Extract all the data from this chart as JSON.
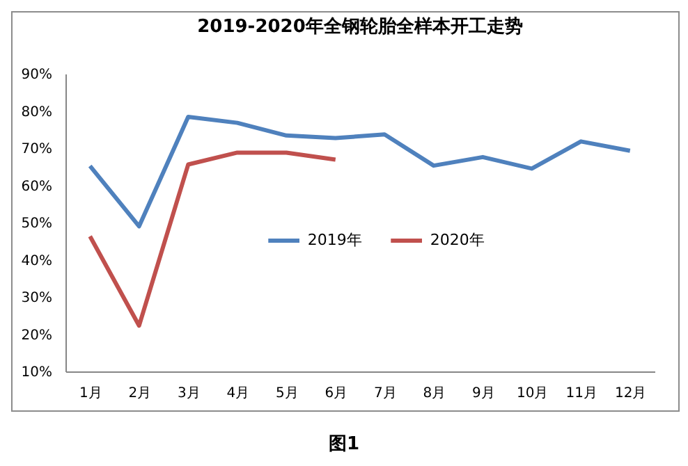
{
  "chart_data": {
    "type": "line",
    "title": "2019-2020年全钢轮胎全样本开工走势",
    "categories": [
      "1月",
      "2月",
      "3月",
      "4月",
      "5月",
      "6月",
      "7月",
      "8月",
      "9月",
      "10月",
      "11月",
      "12月"
    ],
    "series": [
      {
        "name": "2019年",
        "color": "#4f81bd",
        "values": [
          65.2,
          49,
          78.4,
          76.8,
          73.4,
          72.7,
          73.7,
          65.3,
          67.6,
          64.5,
          71.8,
          69.3
        ]
      },
      {
        "name": "2020年",
        "color": "#c0504d",
        "values": [
          46.3,
          22.3,
          65.6,
          68.8,
          68.8,
          66.9,
          null,
          null,
          null,
          null,
          null,
          null
        ]
      }
    ],
    "ylim": [
      10,
      90
    ],
    "yticks": [
      {
        "value": 10,
        "label": "10%"
      },
      {
        "value": 20,
        "label": "20%"
      },
      {
        "value": 30,
        "label": "30%"
      },
      {
        "value": 40,
        "label": "40%"
      },
      {
        "value": 50,
        "label": "50%"
      },
      {
        "value": 60,
        "label": "60%"
      },
      {
        "value": 70,
        "label": "70%"
      },
      {
        "value": 80,
        "label": "80%"
      },
      {
        "value": 90,
        "label": "90%"
      }
    ],
    "grid": false,
    "legend": "center",
    "marker": "none",
    "line_style": "solid",
    "annotations": [
      "图1"
    ]
  }
}
